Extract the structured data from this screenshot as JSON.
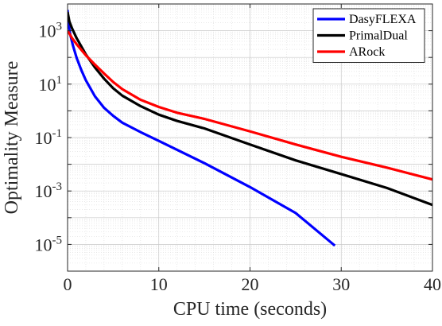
{
  "chart_data": {
    "type": "line",
    "xlabel": "CPU time (seconds)",
    "ylabel": "Optimality Measure",
    "xlim": [
      0,
      40
    ],
    "ylim": [
      1e-06,
      10000
    ],
    "yscale": "log",
    "grid": true,
    "minor_grid": true,
    "legend_position": "top-right",
    "x_ticks": [
      {
        "value": 0,
        "label": "0"
      },
      {
        "value": 10,
        "label": "10"
      },
      {
        "value": 20,
        "label": "20"
      },
      {
        "value": 30,
        "label": "30"
      },
      {
        "value": 40,
        "label": "40"
      }
    ],
    "y_ticks": [
      {
        "value": 1000,
        "base": "10",
        "exp": "3"
      },
      {
        "value": 10,
        "base": "10",
        "exp": "1"
      },
      {
        "value": 0.1,
        "base": "10",
        "exp": "-1"
      },
      {
        "value": 0.001,
        "base": "10",
        "exp": "-3"
      },
      {
        "value": 1e-05,
        "base": "10",
        "exp": "-5"
      }
    ],
    "series": [
      {
        "name": "DasyFLEXA",
        "color": "#0000ff",
        "x": [
          0,
          0.1,
          0.3,
          0.6,
          1,
          1.5,
          2,
          3,
          4,
          5,
          6,
          8,
          10,
          15,
          20,
          25,
          29.3
        ],
        "y": [
          6000,
          1800,
          700,
          270,
          95,
          34,
          14,
          3.5,
          1.3,
          0.65,
          0.36,
          0.16,
          0.075,
          0.011,
          0.0014,
          0.00015,
          9e-06
        ]
      },
      {
        "name": "PrimalDual",
        "color": "#000000",
        "x": [
          0,
          0.2,
          0.5,
          1,
          2,
          3,
          4,
          5,
          6,
          8,
          10,
          12,
          15,
          20,
          25,
          30,
          35,
          40
        ],
        "y": [
          5000,
          2200,
          1200,
          520,
          130,
          42,
          16,
          7,
          3.7,
          1.5,
          0.72,
          0.42,
          0.22,
          0.055,
          0.014,
          0.0043,
          0.0013,
          0.0003
        ]
      },
      {
        "name": "ARock",
        "color": "#ff0000",
        "x": [
          0,
          0.2,
          0.5,
          1,
          2,
          3,
          4,
          5,
          6,
          8,
          10,
          12,
          15,
          20,
          25,
          30,
          35,
          40
        ],
        "y": [
          1000,
          780,
          520,
          310,
          120,
          54,
          25,
          12,
          6.5,
          2.6,
          1.4,
          0.85,
          0.5,
          0.17,
          0.055,
          0.019,
          0.0075,
          0.0027
        ]
      }
    ]
  }
}
